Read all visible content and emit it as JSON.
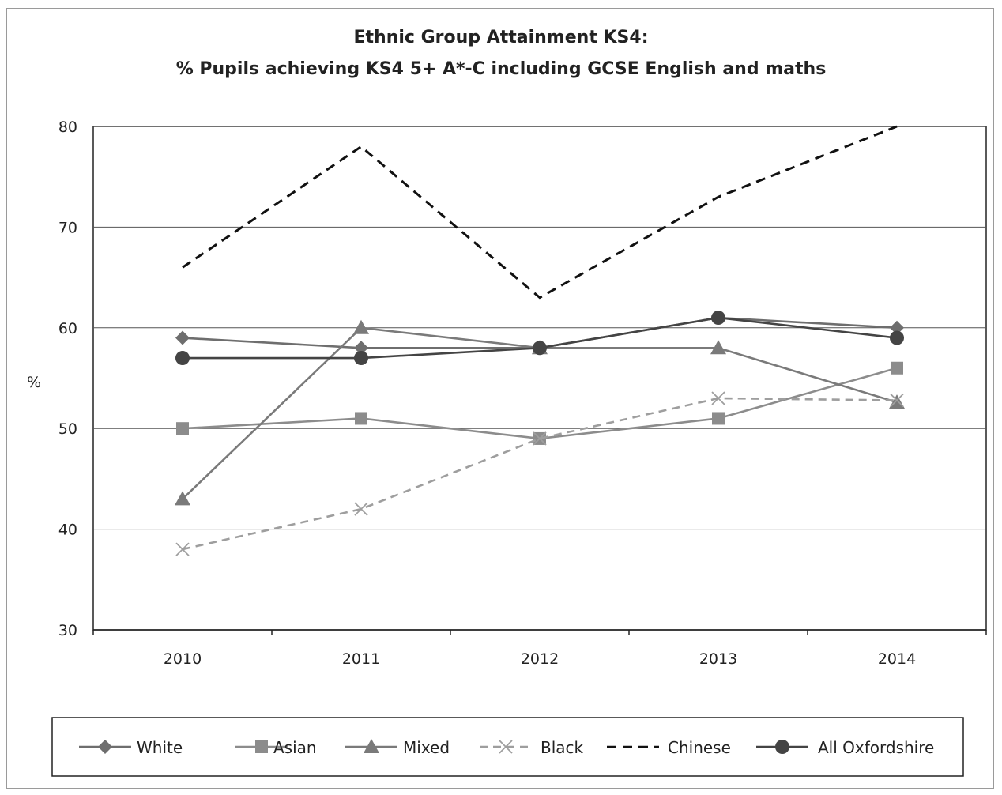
{
  "chart_data": {
    "type": "line",
    "title": "Ethnic Group Attainment KS4:",
    "subtitle": "% Pupils achieving KS4 5+ A*-C including GCSE English and maths",
    "ylabel": "%",
    "xlabel": "",
    "ylim": [
      30,
      80
    ],
    "yticks": [
      "30",
      "40",
      "50",
      "60",
      "70",
      "80"
    ],
    "gridlines": "horizontal",
    "legend_position": "bottom",
    "categories": [
      "2010",
      "2011",
      "2012",
      "2013",
      "2014"
    ],
    "series": [
      {
        "name": "White",
        "values": [
          59,
          58,
          58,
          61,
          60
        ],
        "marker": "diamond",
        "color": "#6e6e6e",
        "dash": "solid"
      },
      {
        "name": "Asian",
        "values": [
          50,
          51,
          49,
          51,
          56
        ],
        "marker": "square",
        "color": "#8c8c8c",
        "dash": "solid"
      },
      {
        "name": "Mixed",
        "values": [
          43,
          60,
          58,
          58,
          52.6
        ],
        "marker": "triangle",
        "color": "#7a7a7a",
        "dash": "solid"
      },
      {
        "name": "Black",
        "values": [
          38,
          42,
          49,
          53,
          52.8
        ],
        "marker": "x",
        "color": "#9e9e9e",
        "dash": "dashed"
      },
      {
        "name": "Chinese",
        "values": [
          66,
          78,
          63,
          73,
          80
        ],
        "marker": "none",
        "color": "#111111",
        "dash": "dashed"
      },
      {
        "name": "All Oxfordshire",
        "values": [
          57,
          57,
          58,
          61,
          59
        ],
        "marker": "circle",
        "color": "#444444",
        "dash": "solid"
      }
    ]
  }
}
